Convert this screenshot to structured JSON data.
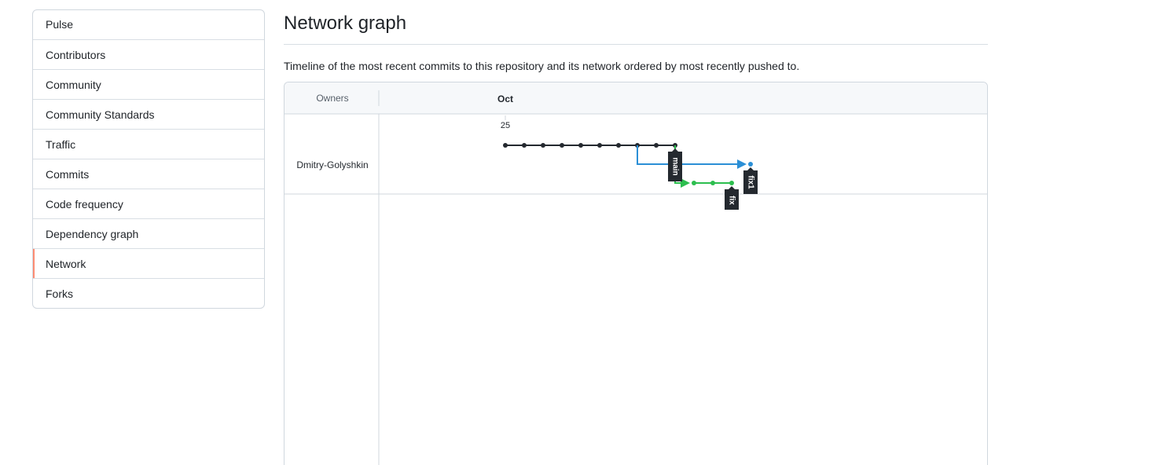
{
  "sidebar": {
    "items": [
      {
        "label": "Pulse"
      },
      {
        "label": "Contributors"
      },
      {
        "label": "Community"
      },
      {
        "label": "Community Standards"
      },
      {
        "label": "Traffic"
      },
      {
        "label": "Commits"
      },
      {
        "label": "Code frequency"
      },
      {
        "label": "Dependency graph"
      },
      {
        "label": "Network",
        "selected": true
      },
      {
        "label": "Forks"
      }
    ]
  },
  "main": {
    "title": "Network graph",
    "description": "Timeline of the most recent commits to this repository and its network ordered by most recently pushed to."
  },
  "network": {
    "owners_header": "Owners",
    "month_label": "Oct",
    "day_label": "25",
    "owner": "Dmitry-Golyshkin",
    "branches": [
      {
        "name": "main",
        "color": "#24292f"
      },
      {
        "name": "fix1",
        "color": "#2b8fd6"
      },
      {
        "name": "fix",
        "color": "#2cbe4e"
      }
    ],
    "colors": {
      "main": "#24292f",
      "fix1": "#2b8fd6",
      "fix": "#2cbe4e",
      "label_bg": "#24292f",
      "label_text": "#ffffff",
      "header_bg": "#f6f8fa",
      "border": "#d0d7de"
    }
  }
}
